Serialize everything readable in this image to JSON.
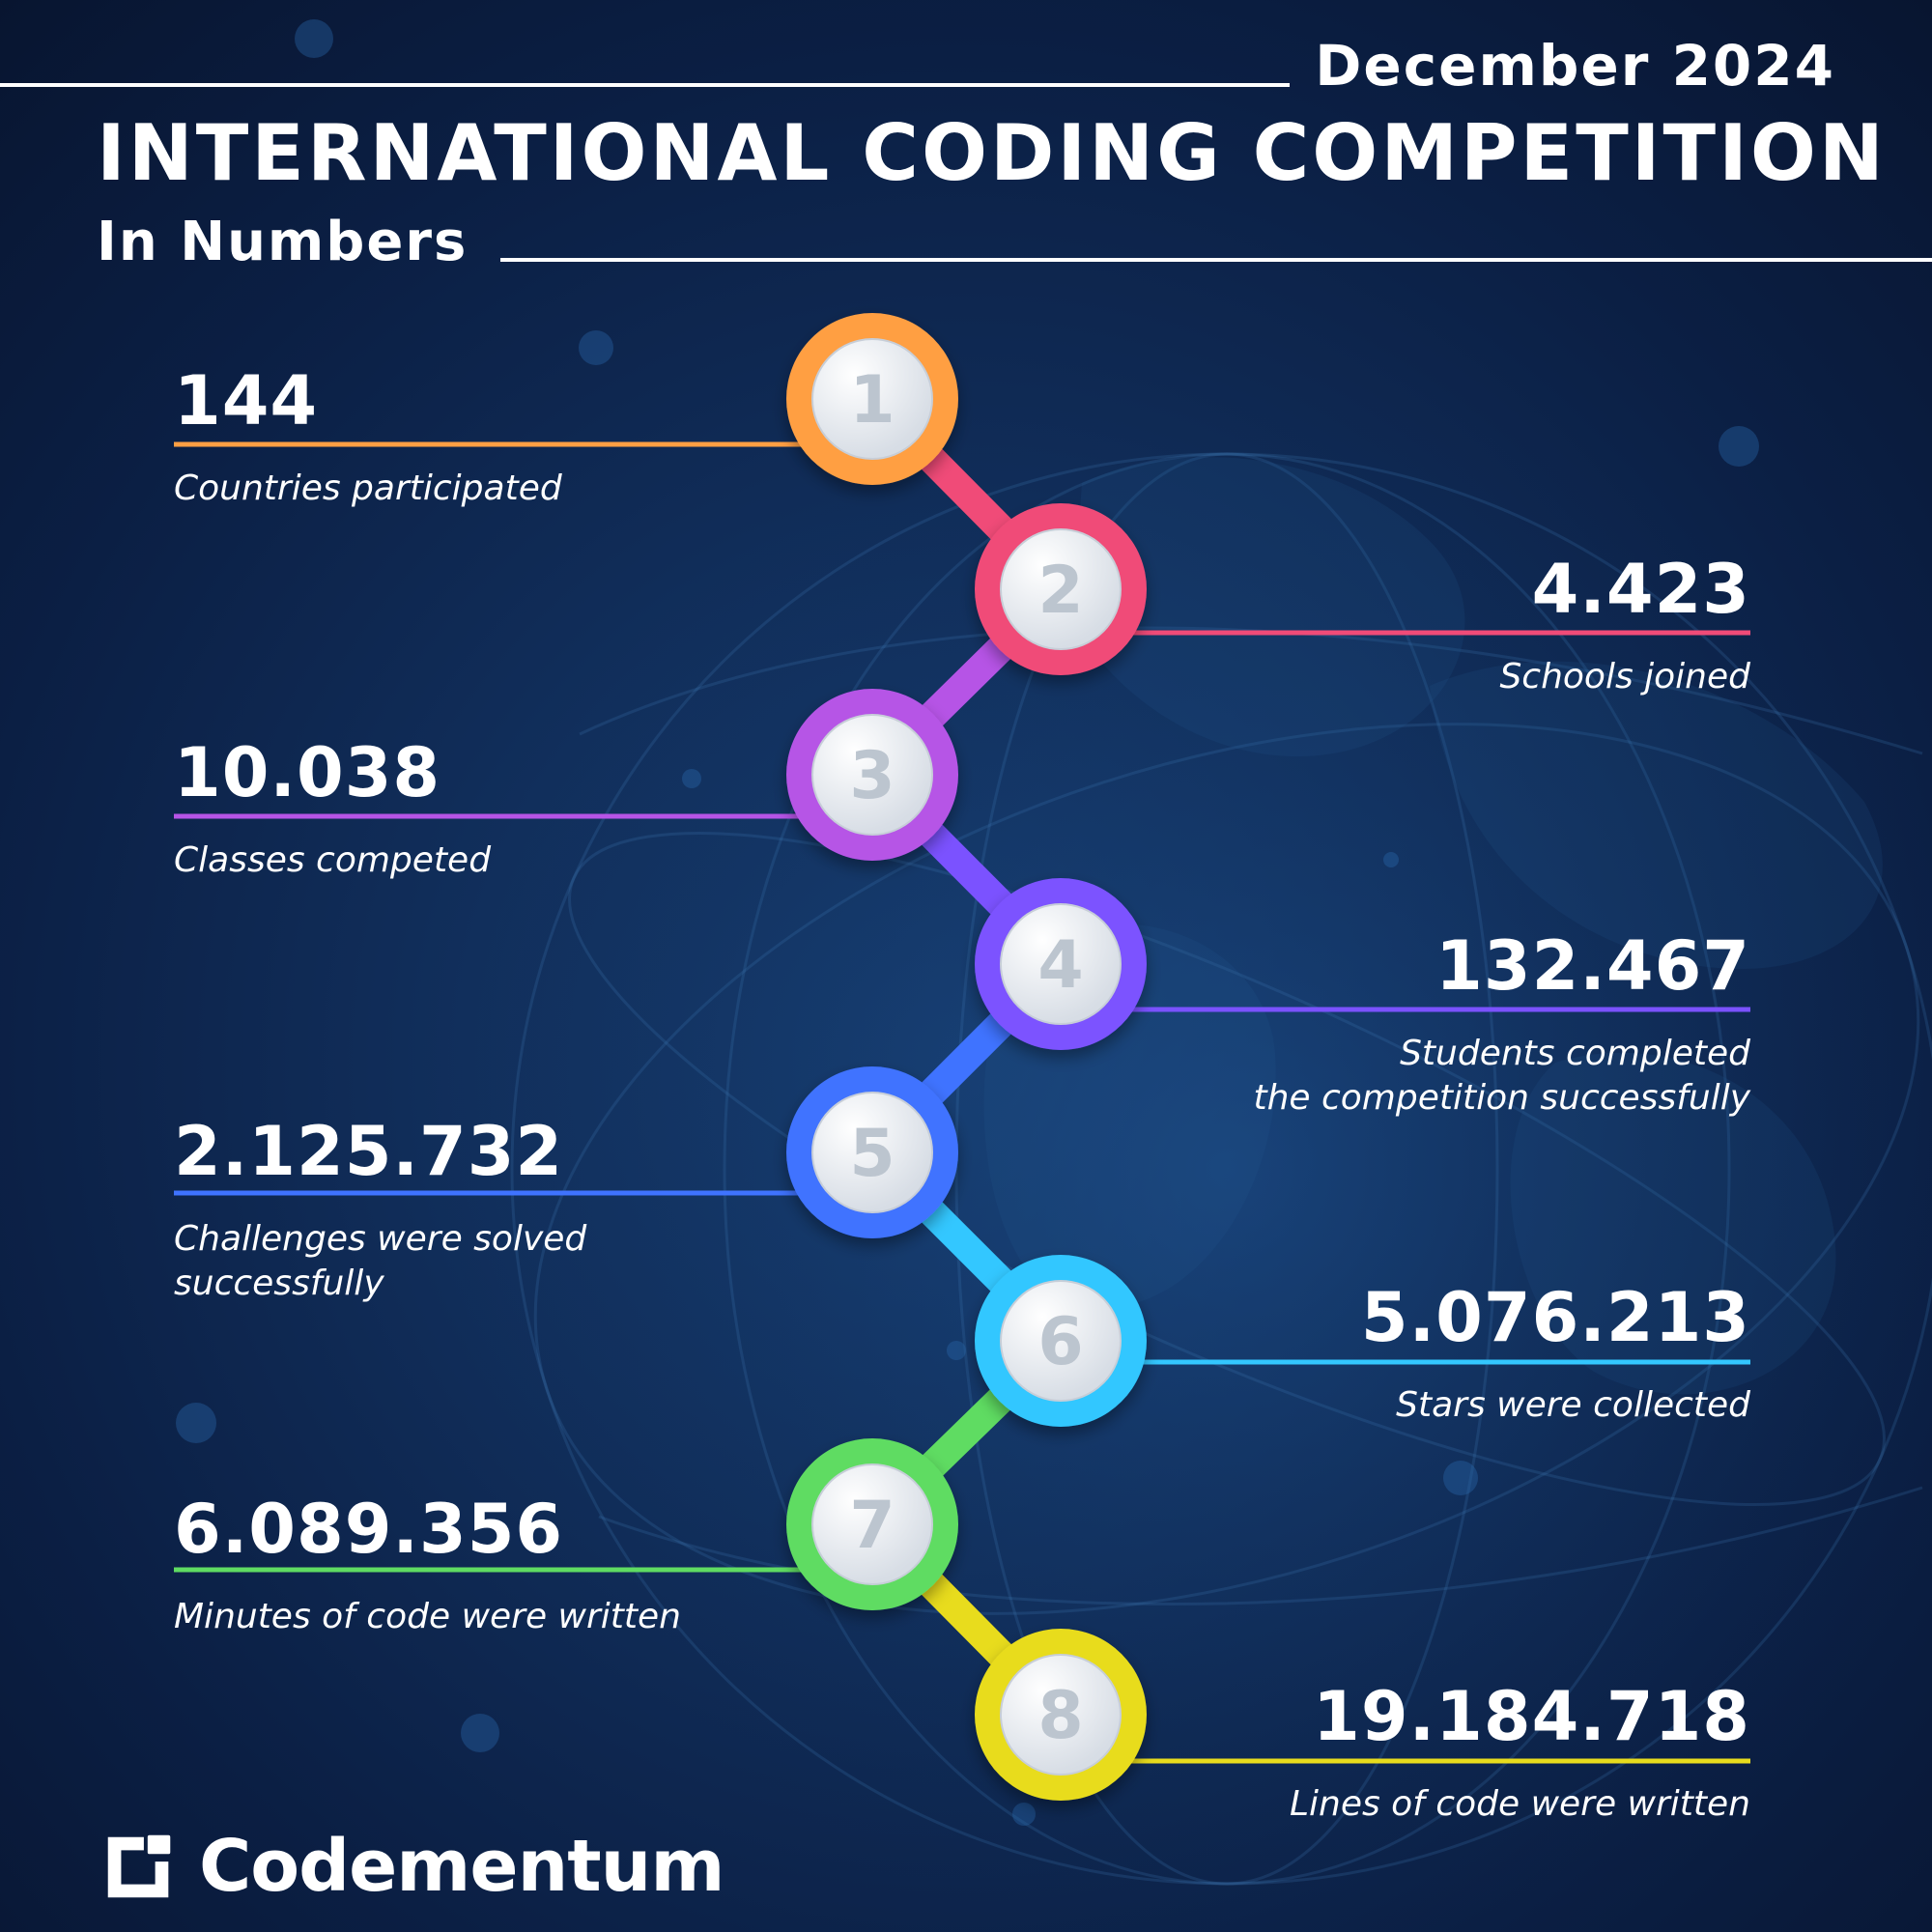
{
  "header": {
    "date": "December 2024",
    "title": "INTERNATIONAL CODING COMPETITION",
    "subtitle": "In Numbers"
  },
  "stats": [
    {
      "number": "1",
      "value": "144",
      "description": "Countries participated",
      "color": "#ff9f43"
    },
    {
      "number": "2",
      "value": "4.423",
      "description": "Schools joined",
      "color": "#f04b78"
    },
    {
      "number": "3",
      "value": "10.038",
      "description": "Classes competed",
      "color": "#b654e6"
    },
    {
      "number": "4",
      "value": "132.467",
      "description": "Students completed\nthe competition successfully",
      "color": "#7b52ff"
    },
    {
      "number": "5",
      "value": "2.125.732",
      "description": "Challenges were solved\nsuccessfully",
      "color": "#3f73ff"
    },
    {
      "number": "6",
      "value": "5.076.213",
      "description": "Stars were collected",
      "color": "#33c7ff"
    },
    {
      "number": "7",
      "value": "6.089.356",
      "description": "Minutes of code were written",
      "color": "#5fdc62"
    },
    {
      "number": "8",
      "value": "19.184.718",
      "description": "Lines of code were written",
      "color": "#e8dc1d"
    }
  ],
  "brand": {
    "name": "Codementum",
    "icon": "codementum-logo-icon"
  },
  "colors": {
    "background_top": "#0b1f44",
    "background_center": "#163c6f",
    "text": "#ffffff"
  }
}
